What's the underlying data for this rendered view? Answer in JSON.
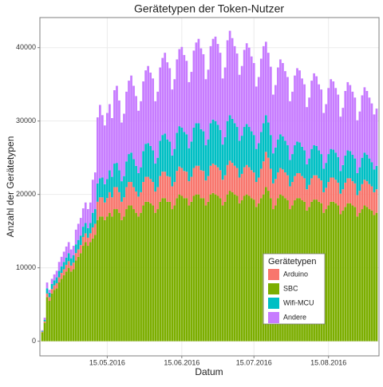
{
  "chart_data": {
    "type": "stacked_bar",
    "title": "Gerätetypen der Token-Nutzer",
    "x_label": "Datum",
    "y_label": "Anzahl der Gerätetypen",
    "legend_title": "Gerätetypen",
    "x": [
      "2016-04-18",
      "2016-04-19",
      "2016-04-20",
      "2016-04-21",
      "2016-04-22",
      "2016-04-23",
      "2016-04-24",
      "2016-04-25",
      "2016-04-26",
      "2016-04-27",
      "2016-04-28",
      "2016-04-29",
      "2016-04-30",
      "2016-05-01",
      "2016-05-02",
      "2016-05-03",
      "2016-05-04",
      "2016-05-05",
      "2016-05-06",
      "2016-05-07",
      "2016-05-08",
      "2016-05-09",
      "2016-05-10",
      "2016-05-11",
      "2016-05-12",
      "2016-05-13",
      "2016-05-14",
      "2016-05-15",
      "2016-05-16",
      "2016-05-17",
      "2016-05-18",
      "2016-05-19",
      "2016-05-20",
      "2016-05-21",
      "2016-05-22",
      "2016-05-23",
      "2016-05-24",
      "2016-05-25",
      "2016-05-26",
      "2016-05-27",
      "2016-05-28",
      "2016-05-29",
      "2016-05-30",
      "2016-05-31",
      "2016-06-01",
      "2016-06-02",
      "2016-06-03",
      "2016-06-04",
      "2016-06-05",
      "2016-06-06",
      "2016-06-07",
      "2016-06-08",
      "2016-06-09",
      "2016-06-10",
      "2016-06-11",
      "2016-06-12",
      "2016-06-13",
      "2016-06-14",
      "2016-06-15",
      "2016-06-16",
      "2016-06-17",
      "2016-06-18",
      "2016-06-19",
      "2016-06-20",
      "2016-06-21",
      "2016-06-22",
      "2016-06-23",
      "2016-06-24",
      "2016-06-25",
      "2016-06-26",
      "2016-06-27",
      "2016-06-28",
      "2016-06-29",
      "2016-06-30",
      "2016-07-01",
      "2016-07-02",
      "2016-07-03",
      "2016-07-04",
      "2016-07-05",
      "2016-07-06",
      "2016-07-07",
      "2016-07-08",
      "2016-07-09",
      "2016-07-10",
      "2016-07-11",
      "2016-07-12",
      "2016-07-13",
      "2016-07-14",
      "2016-07-15",
      "2016-07-16",
      "2016-07-17",
      "2016-07-18",
      "2016-07-19",
      "2016-07-20",
      "2016-07-21",
      "2016-07-22",
      "2016-07-23",
      "2016-07-24",
      "2016-07-25",
      "2016-07-26",
      "2016-07-27",
      "2016-07-28",
      "2016-07-29",
      "2016-07-30",
      "2016-07-31",
      "2016-08-01",
      "2016-08-02",
      "2016-08-03",
      "2016-08-04",
      "2016-08-05",
      "2016-08-06",
      "2016-08-07",
      "2016-08-08",
      "2016-08-09",
      "2016-08-10",
      "2016-08-11",
      "2016-08-12",
      "2016-08-13",
      "2016-08-14",
      "2016-08-15",
      "2016-08-16",
      "2016-08-17",
      "2016-08-18",
      "2016-08-19",
      "2016-08-20",
      "2016-08-21",
      "2016-08-22",
      "2016-08-23",
      "2016-08-24",
      "2016-08-25",
      "2016-08-26",
      "2016-08-27",
      "2016-08-28",
      "2016-08-29",
      "2016-08-30",
      "2016-08-31",
      "2016-09-01",
      "2016-09-02",
      "2016-09-03",
      "2016-09-04"
    ],
    "series": [
      {
        "name": "Arduino",
        "color": "#F8766D",
        "values": [
          100,
          200,
          500,
          500,
          600,
          600,
          700,
          700,
          800,
          800,
          900,
          900,
          800,
          900,
          1000,
          1000,
          1100,
          1200,
          1200,
          1100,
          1200,
          1500,
          1500,
          2500,
          2600,
          2600,
          2400,
          2500,
          2800,
          2600,
          3000,
          3000,
          2800,
          2500,
          2600,
          3000,
          3200,
          3200,
          3000,
          2900,
          2700,
          2800,
          3200,
          3400,
          3400,
          3300,
          3200,
          2900,
          3000,
          3500,
          3600,
          3600,
          3500,
          3400,
          3100,
          3200,
          3700,
          3800,
          3800,
          3700,
          3600,
          3300,
          3400,
          3800,
          3900,
          3900,
          3800,
          3700,
          3400,
          3500,
          3900,
          4000,
          4000,
          3900,
          3800,
          3500,
          3600,
          4000,
          4100,
          4000,
          3900,
          3800,
          3500,
          3600,
          3900,
          4000,
          3900,
          3800,
          3700,
          3400,
          3500,
          4000,
          4500,
          4800,
          4500,
          4000,
          3500,
          3600,
          3500,
          3600,
          3600,
          3500,
          3400,
          3100,
          3200,
          3300,
          3400,
          3400,
          3300,
          3200,
          2900,
          3000,
          3200,
          3300,
          3300,
          3200,
          3100,
          2800,
          2900,
          3200,
          3300,
          3300,
          3200,
          3100,
          2800,
          2900,
          3300,
          3400,
          3400,
          3300,
          3200,
          2900,
          3000,
          3400,
          3500,
          3500,
          3400,
          3300,
          3100,
          3200
        ]
      },
      {
        "name": "SBC",
        "color": "#7CAE00",
        "values": [
          1200,
          2500,
          6000,
          5500,
          6500,
          7000,
          7200,
          8000,
          8500,
          9000,
          9500,
          10000,
          9500,
          9800,
          11000,
          11500,
          12000,
          13000,
          13500,
          13000,
          13500,
          14000,
          14500,
          16500,
          17000,
          17000,
          16500,
          17000,
          17500,
          17000,
          18000,
          18000,
          17500,
          16500,
          17000,
          18000,
          18500,
          18500,
          18000,
          17500,
          17000,
          17500,
          18500,
          19000,
          19000,
          18800,
          18500,
          17500,
          18000,
          19000,
          19500,
          19500,
          19000,
          19000,
          18000,
          18500,
          19500,
          20000,
          19800,
          19500,
          19500,
          18500,
          19000,
          19800,
          20000,
          20000,
          19500,
          19500,
          18500,
          19000,
          20000,
          20200,
          20000,
          19800,
          19500,
          18500,
          19000,
          20000,
          20500,
          20300,
          20000,
          19800,
          18800,
          19200,
          19800,
          20000,
          19800,
          19500,
          19300,
          18300,
          18800,
          19500,
          20000,
          21000,
          20500,
          19500,
          18000,
          18500,
          19500,
          20000,
          19800,
          19500,
          19200,
          18000,
          18500,
          19200,
          19500,
          19500,
          19200,
          19000,
          17800,
          18300,
          19000,
          19300,
          19300,
          19000,
          18800,
          17500,
          18000,
          18500,
          19000,
          19000,
          18800,
          18500,
          17300,
          17800,
          18300,
          18800,
          18800,
          18500,
          18300,
          17000,
          17500,
          18000,
          18500,
          18300,
          18000,
          17800,
          17200,
          17500
        ]
      },
      {
        "name": "Wifi-MCU",
        "color": "#00BFC4",
        "values": [
          100,
          200,
          700,
          600,
          700,
          700,
          800,
          900,
          900,
          1000,
          1000,
          1100,
          1000,
          1000,
          1200,
          1300,
          1300,
          1400,
          1400,
          1300,
          1400,
          2000,
          2000,
          2500,
          2600,
          2700,
          2500,
          2600,
          3000,
          2800,
          3200,
          3300,
          3000,
          2800,
          2900,
          3500,
          3800,
          4000,
          3800,
          3500,
          3200,
          3400,
          4200,
          4500,
          4600,
          4500,
          4300,
          3800,
          4000,
          4800,
          5000,
          5200,
          5000,
          4800,
          4200,
          4500,
          5200,
          5500,
          5500,
          5300,
          5100,
          4500,
          4800,
          5500,
          5800,
          5800,
          5600,
          5400,
          4800,
          5000,
          5800,
          6000,
          6000,
          5800,
          5500,
          4800,
          5200,
          6000,
          6200,
          6000,
          5800,
          5600,
          5000,
          5200,
          5500,
          5600,
          5500,
          5300,
          5100,
          4500,
          4700,
          5000,
          5200,
          5000,
          4800,
          4600,
          4100,
          4300,
          4500,
          4600,
          4500,
          4300,
          4100,
          3600,
          3800,
          4200,
          4300,
          4200,
          4000,
          3800,
          3400,
          3600,
          4000,
          4100,
          4000,
          3800,
          3600,
          3200,
          3400,
          3800,
          3900,
          3800,
          3700,
          3500,
          3100,
          3300,
          3700,
          3800,
          3700,
          3600,
          3400,
          3000,
          3200,
          3600,
          3700,
          3600,
          3500,
          3300,
          3100,
          3200
        ]
      },
      {
        "name": "Andere",
        "color": "#C77CFF",
        "values": [
          100,
          300,
          800,
          400,
          700,
          800,
          900,
          1200,
          1300,
          1400,
          1500,
          1500,
          1200,
          1300,
          2000,
          2200,
          2400,
          2500,
          2800,
          2600,
          2800,
          4500,
          5000,
          9000,
          10000,
          8500,
          8000,
          9000,
          9000,
          8000,
          10000,
          10500,
          9500,
          8000,
          8500,
          9500,
          10000,
          10500,
          10000,
          9500,
          8500,
          9000,
          9500,
          10000,
          10500,
          10000,
          9800,
          8500,
          9000,
          10000,
          10500,
          11000,
          10500,
          10000,
          9000,
          9500,
          10000,
          10500,
          11000,
          10500,
          10000,
          9000,
          9500,
          10500,
          11000,
          11500,
          11000,
          10500,
          9000,
          9500,
          10500,
          11000,
          11500,
          11000,
          10500,
          9000,
          9500,
          11000,
          11500,
          11000,
          10500,
          10000,
          9000,
          9500,
          10500,
          11000,
          10800,
          10200,
          9800,
          8500,
          9000,
          10000,
          10500,
          10000,
          9500,
          9300,
          8000,
          8500,
          9800,
          10200,
          10000,
          9500,
          9300,
          8000,
          8500,
          9500,
          10000,
          9800,
          9300,
          9000,
          7800,
          8300,
          9300,
          9800,
          9500,
          9000,
          8800,
          7600,
          8000,
          9000,
          9500,
          9300,
          8800,
          8500,
          7400,
          7800,
          8800,
          9300,
          9000,
          8600,
          8300,
          7200,
          7600,
          8500,
          8900,
          8700,
          8300,
          8000,
          7500,
          7800
        ]
      }
    ],
    "xlim": [
      "2016-04-17",
      "2016-09-05"
    ],
    "xticks": [
      {
        "value": "2016-05-15",
        "label": "15.05.2016"
      },
      {
        "value": "2016-06-15",
        "label": "15.06.2016"
      },
      {
        "value": "2016-07-15",
        "label": "15.07.2016"
      },
      {
        "value": "2016-08-15",
        "label": "15.08.2016"
      }
    ],
    "ylim": [
      -2000,
      44100
    ],
    "yticks": [
      0,
      10000,
      20000,
      30000,
      40000
    ],
    "grid": true
  }
}
